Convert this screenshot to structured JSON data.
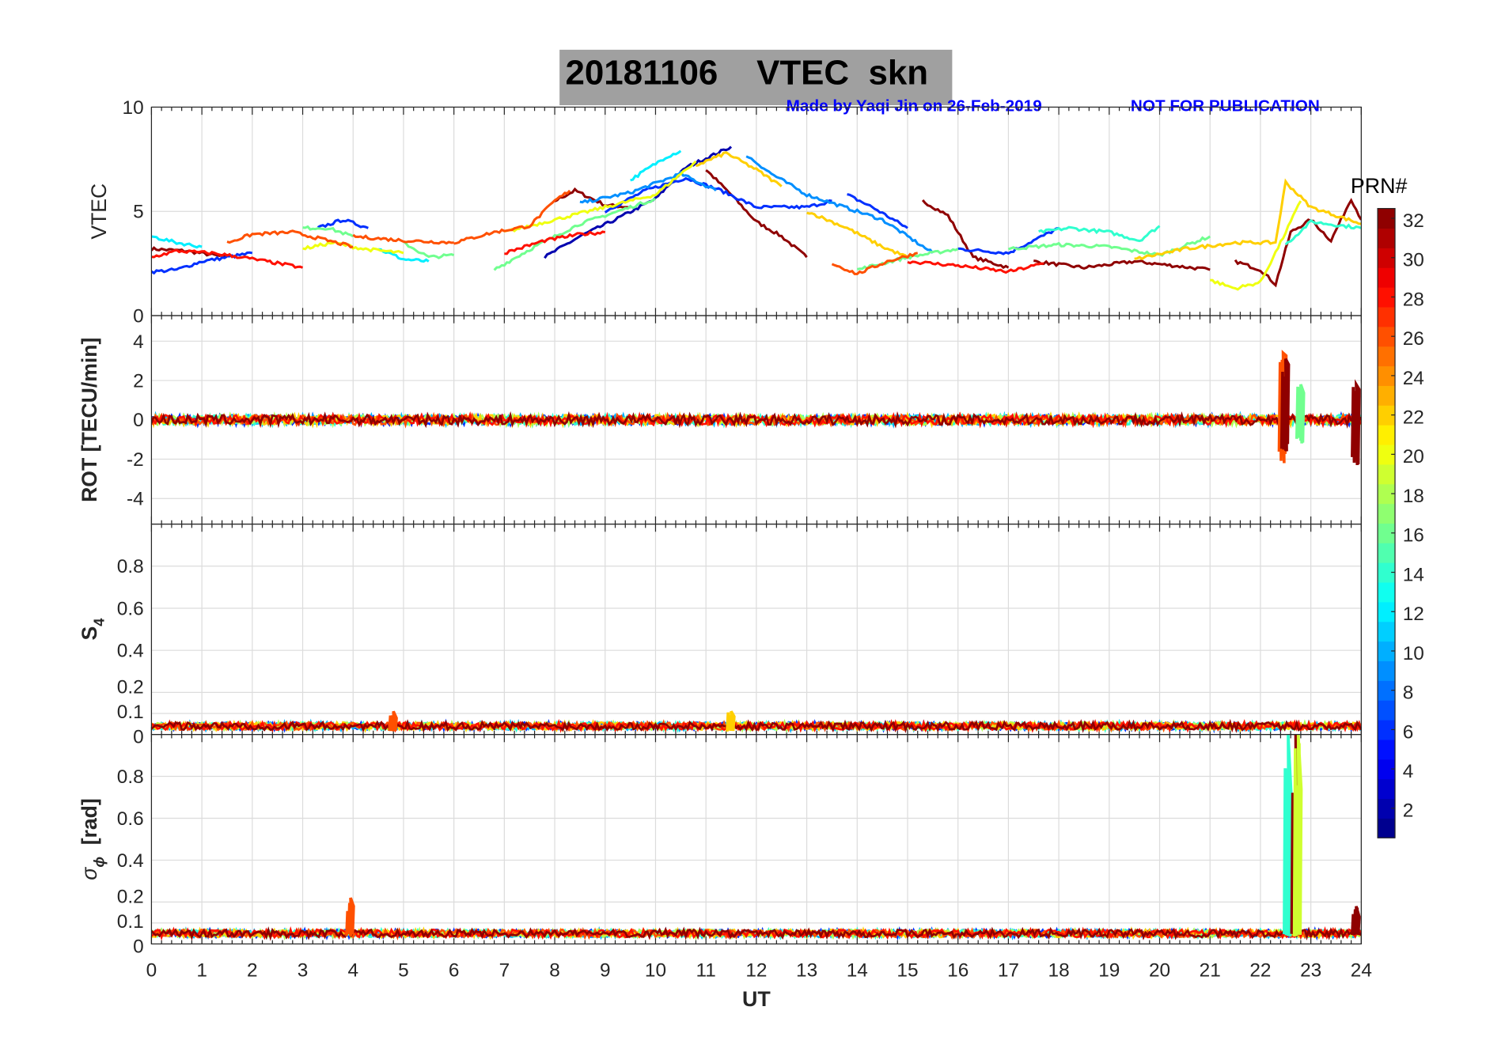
{
  "title": "20181106    VTEC  skn",
  "credit": "Made by Yaqi Jin on 26-Feb-2019",
  "notice": "NOT FOR PUBLICATION",
  "colors": {
    "credit": "#0000ff",
    "title_box": "#a0a0a0"
  },
  "chart_data": [
    {
      "type": "line",
      "panel": "vtec",
      "ylabel": "VTEC",
      "ylim": [
        0,
        10
      ],
      "yticks": [
        "0",
        "5",
        "10"
      ],
      "ytick_values": [
        0,
        5,
        10
      ],
      "grid": true,
      "series": [
        {
          "prn": 32,
          "segments": [
            [
              [
                0,
                3.2
              ],
              [
                0.7,
                3.1
              ],
              [
                1.5,
                2.8
              ]
            ],
            [
              [
                8,
                5.5
              ],
              [
                8.4,
                6
              ],
              [
                9,
                5.3
              ],
              [
                9.5,
                5.2
              ]
            ],
            [
              [
                11,
                7
              ],
              [
                11.5,
                5.8
              ],
              [
                12,
                4.5
              ],
              [
                12.5,
                3.8
              ],
              [
                13,
                2.8
              ]
            ],
            [
              [
                15.3,
                5.5
              ],
              [
                15.8,
                4.8
              ],
              [
                16.3,
                2.8
              ],
              [
                17,
                2.3
              ]
            ],
            [
              [
                17.5,
                2.6
              ],
              [
                18.5,
                2.3
              ],
              [
                19.5,
                2.6
              ],
              [
                21,
                2.2
              ]
            ],
            [
              [
                21.5,
                2.6
              ],
              [
                22,
                2.2
              ],
              [
                22.3,
                1.5
              ],
              [
                22.6,
                4
              ],
              [
                23,
                4.6
              ],
              [
                23.4,
                3.6
              ],
              [
                23.8,
                5.6
              ],
              [
                24,
                4.6
              ]
            ]
          ]
        },
        {
          "prn": 2,
          "segments": [
            [
              [
                7.8,
                2.8
              ],
              [
                8.5,
                3.8
              ],
              [
                9.2,
                4.6
              ],
              [
                10,
                5.6
              ],
              [
                10.6,
                7.1
              ],
              [
                11.5,
                8.1
              ]
            ]
          ]
        },
        {
          "prn": 6,
          "segments": [
            [
              [
                0,
                2.1
              ],
              [
                0.5,
                2.2
              ],
              [
                1,
                2.6
              ],
              [
                2,
                3
              ]
            ],
            [
              [
                3.3,
                4.2
              ],
              [
                3.8,
                4.6
              ],
              [
                4.3,
                4.2
              ]
            ],
            [
              [
                9,
                5
              ],
              [
                9.8,
                6
              ],
              [
                10.6,
                6.6
              ],
              [
                11.3,
                6
              ],
              [
                12,
                5.2
              ],
              [
                13,
                5.2
              ],
              [
                13.5,
                5.5
              ]
            ],
            [
              [
                13.8,
                5.8
              ],
              [
                14.3,
                5.2
              ],
              [
                15,
                4.2
              ]
            ],
            [
              [
                16,
                3.2
              ],
              [
                17,
                3
              ],
              [
                18,
                4.2
              ]
            ]
          ]
        },
        {
          "prn": 9,
          "segments": [
            [
              [
                8.5,
                5.4
              ],
              [
                9.5,
                5.9
              ],
              [
                10.5,
                6.8
              ],
              [
                11.2,
                6
              ]
            ],
            [
              [
                11.8,
                7.7
              ],
              [
                12.3,
                6.8
              ],
              [
                13,
                5.8
              ],
              [
                14,
                5
              ],
              [
                14.5,
                4.6
              ],
              [
                15.5,
                3
              ]
            ]
          ]
        },
        {
          "prn": 12,
          "segments": [
            [
              [
                0,
                3.8
              ],
              [
                0.5,
                3.5
              ],
              [
                1,
                3.3
              ]
            ],
            [
              [
                9.5,
                6.5
              ],
              [
                10.2,
                7.6
              ],
              [
                10.5,
                7.9
              ]
            ],
            [
              [
                4.5,
                3.2
              ],
              [
                5,
                2.7
              ],
              [
                5.5,
                2.6
              ]
            ]
          ]
        },
        {
          "prn": 14,
          "segments": [
            [
              [
                17.6,
                4
              ],
              [
                18.2,
                4.2
              ],
              [
                19,
                4
              ],
              [
                19.6,
                3.6
              ],
              [
                20,
                4.3
              ]
            ],
            [
              [
                22.5,
                3.4
              ],
              [
                23,
                4.5
              ],
              [
                24,
                4.2
              ]
            ]
          ]
        },
        {
          "prn": 16,
          "segments": [
            [
              [
                3,
                4.2
              ],
              [
                3.5,
                4.2
              ],
              [
                4,
                3.8
              ]
            ],
            [
              [
                5,
                3.5
              ],
              [
                5.5,
                2.8
              ],
              [
                6,
                2.9
              ]
            ],
            [
              [
                6.8,
                2.2
              ],
              [
                7.6,
                3.3
              ],
              [
                8.5,
                4.4
              ],
              [
                9.5,
                5.2
              ],
              [
                10,
                5.6
              ]
            ],
            [
              [
                14,
                2.2
              ],
              [
                15,
                2.8
              ],
              [
                16,
                3.2
              ]
            ],
            [
              [
                17,
                3.2
              ],
              [
                18,
                3.4
              ],
              [
                19,
                3.3
              ],
              [
                20,
                2.9
              ],
              [
                21,
                3.8
              ]
            ]
          ]
        },
        {
          "prn": 20,
          "segments": [
            [
              [
                3,
                3.2
              ],
              [
                3.6,
                3.5
              ],
              [
                4.2,
                3.2
              ],
              [
                5,
                3
              ]
            ],
            [
              [
                7,
                4
              ],
              [
                8,
                4.6
              ],
              [
                9,
                5.2
              ],
              [
                10,
                5.8
              ],
              [
                10.8,
                7.4
              ]
            ],
            [
              [
                21,
                1.7
              ],
              [
                21.5,
                1.3
              ],
              [
                22,
                1.6
              ],
              [
                22.4,
                3.5
              ],
              [
                22.8,
                5.5
              ]
            ]
          ]
        },
        {
          "prn": 22,
          "segments": [
            [
              [
                10.8,
                7.2
              ],
              [
                11.4,
                7.8
              ],
              [
                12,
                7
              ],
              [
                12.5,
                6.2
              ]
            ],
            [
              [
                13,
                5
              ],
              [
                13.8,
                4.2
              ],
              [
                14.5,
                3.3
              ],
              [
                15,
                2.8
              ]
            ],
            [
              [
                19.5,
                2.7
              ],
              [
                20.5,
                3.2
              ],
              [
                21.5,
                3.5
              ],
              [
                22.3,
                3.5
              ],
              [
                22.5,
                6.4
              ],
              [
                23,
                5.2
              ],
              [
                24,
                4.4
              ]
            ]
          ]
        },
        {
          "prn": 26,
          "segments": [
            [
              [
                1.5,
                3.5
              ],
              [
                2,
                3.9
              ],
              [
                2.8,
                4
              ],
              [
                3.5,
                3.6
              ],
              [
                4,
                3.3
              ]
            ],
            [
              [
                4,
                3.8
              ],
              [
                5,
                3.6
              ],
              [
                6,
                3.5
              ]
            ],
            [
              [
                6,
                3.5
              ],
              [
                6.8,
                4
              ],
              [
                7.5,
                4.3
              ],
              [
                8,
                5.5
              ],
              [
                8.3,
                6
              ]
            ],
            [
              [
                13.5,
                2.5
              ],
              [
                14,
                2
              ],
              [
                14.6,
                2.6
              ],
              [
                15.2,
                3
              ]
            ]
          ]
        },
        {
          "prn": 28,
          "segments": [
            [
              [
                7,
                3
              ],
              [
                7.8,
                3.6
              ],
              [
                8.5,
                3.9
              ],
              [
                9,
                4
              ]
            ],
            [
              [
                15,
                2.6
              ],
              [
                16,
                2.4
              ],
              [
                17,
                2.1
              ],
              [
                17.7,
                2.5
              ]
            ],
            [
              [
                0,
                2.8
              ],
              [
                0.5,
                3.1
              ],
              [
                1.2,
                3
              ],
              [
                1.8,
                2.8
              ],
              [
                3,
                2.3
              ]
            ]
          ]
        }
      ]
    },
    {
      "type": "line",
      "panel": "rot",
      "ylabel": "ROT [TECU/min]",
      "ylim": [
        -5.3,
        5.3
      ],
      "yticks": [
        "-4",
        "-2",
        "0",
        "2",
        "4"
      ],
      "ytick_values": [
        -4,
        -2,
        0,
        2,
        4
      ],
      "baseline": 0,
      "noise_amplitude": 0.25,
      "events": [
        {
          "x": 22.45,
          "min": -2.2,
          "max": 3.4,
          "prn": 26
        },
        {
          "x": 22.5,
          "min": -1.6,
          "max": 3.1,
          "prn": 32
        },
        {
          "x": 22.8,
          "min": -1.2,
          "max": 1.8,
          "prn": 16
        },
        {
          "x": 23.9,
          "min": -2.3,
          "max": 1.8,
          "prn": 32
        }
      ]
    },
    {
      "type": "line",
      "panel": "s4",
      "ylabel": "S",
      "ylabel_sub": "4",
      "ylim": [
        0,
        1
      ],
      "yticks": [
        "0",
        "0.1",
        "0.2",
        "0.4",
        "0.6",
        "0.8"
      ],
      "ytick_values": [
        0,
        0.1,
        0.2,
        0.4,
        0.6,
        0.8
      ],
      "baseline": 0.04,
      "noise_amplitude": 0.03,
      "events": [
        {
          "x": 11.5,
          "min": 0.02,
          "max": 0.11,
          "prn": 22
        },
        {
          "x": 4.8,
          "min": 0.02,
          "max": 0.11,
          "prn": 26
        }
      ]
    },
    {
      "type": "line",
      "panel": "sigma_phi",
      "ylabel": "σ",
      "ylabel_sub": "ϕ",
      "ylabel_unit": "[rad]",
      "ylim": [
        0,
        1
      ],
      "yticks": [
        "0",
        "0.1",
        "0.2",
        "0.4",
        "0.6",
        "0.8"
      ],
      "ytick_values": [
        0,
        0.1,
        0.2,
        0.4,
        0.6,
        0.8
      ],
      "baseline": 0.05,
      "noise_amplitude": 0.03,
      "events": [
        {
          "x": 3.95,
          "min": 0.05,
          "max": 0.22,
          "prn": 26
        },
        {
          "x": 22.55,
          "min": 0.05,
          "max": 1.0,
          "prn": 14
        },
        {
          "x": 22.7,
          "min": 0.05,
          "max": 1.0,
          "prn": 32
        },
        {
          "x": 22.75,
          "min": 0.05,
          "max": 1.0,
          "prn": 19
        },
        {
          "x": 23.9,
          "min": 0.05,
          "max": 0.18,
          "prn": 32
        }
      ]
    }
  ],
  "xaxis": {
    "label": "UT",
    "xlim": [
      0,
      24
    ],
    "ticks": [
      "0",
      "1",
      "2",
      "3",
      "4",
      "5",
      "6",
      "7",
      "8",
      "9",
      "10",
      "11",
      "12",
      "13",
      "14",
      "15",
      "16",
      "17",
      "18",
      "19",
      "20",
      "21",
      "22",
      "23",
      "24"
    ]
  },
  "colorbar": {
    "label": "PRN#",
    "range": [
      1,
      32
    ],
    "colormap": "jet",
    "levels": 32,
    "ticks": [
      "2",
      "4",
      "6",
      "8",
      "10",
      "12",
      "14",
      "16",
      "18",
      "20",
      "22",
      "24",
      "26",
      "28",
      "30",
      "32"
    ]
  }
}
